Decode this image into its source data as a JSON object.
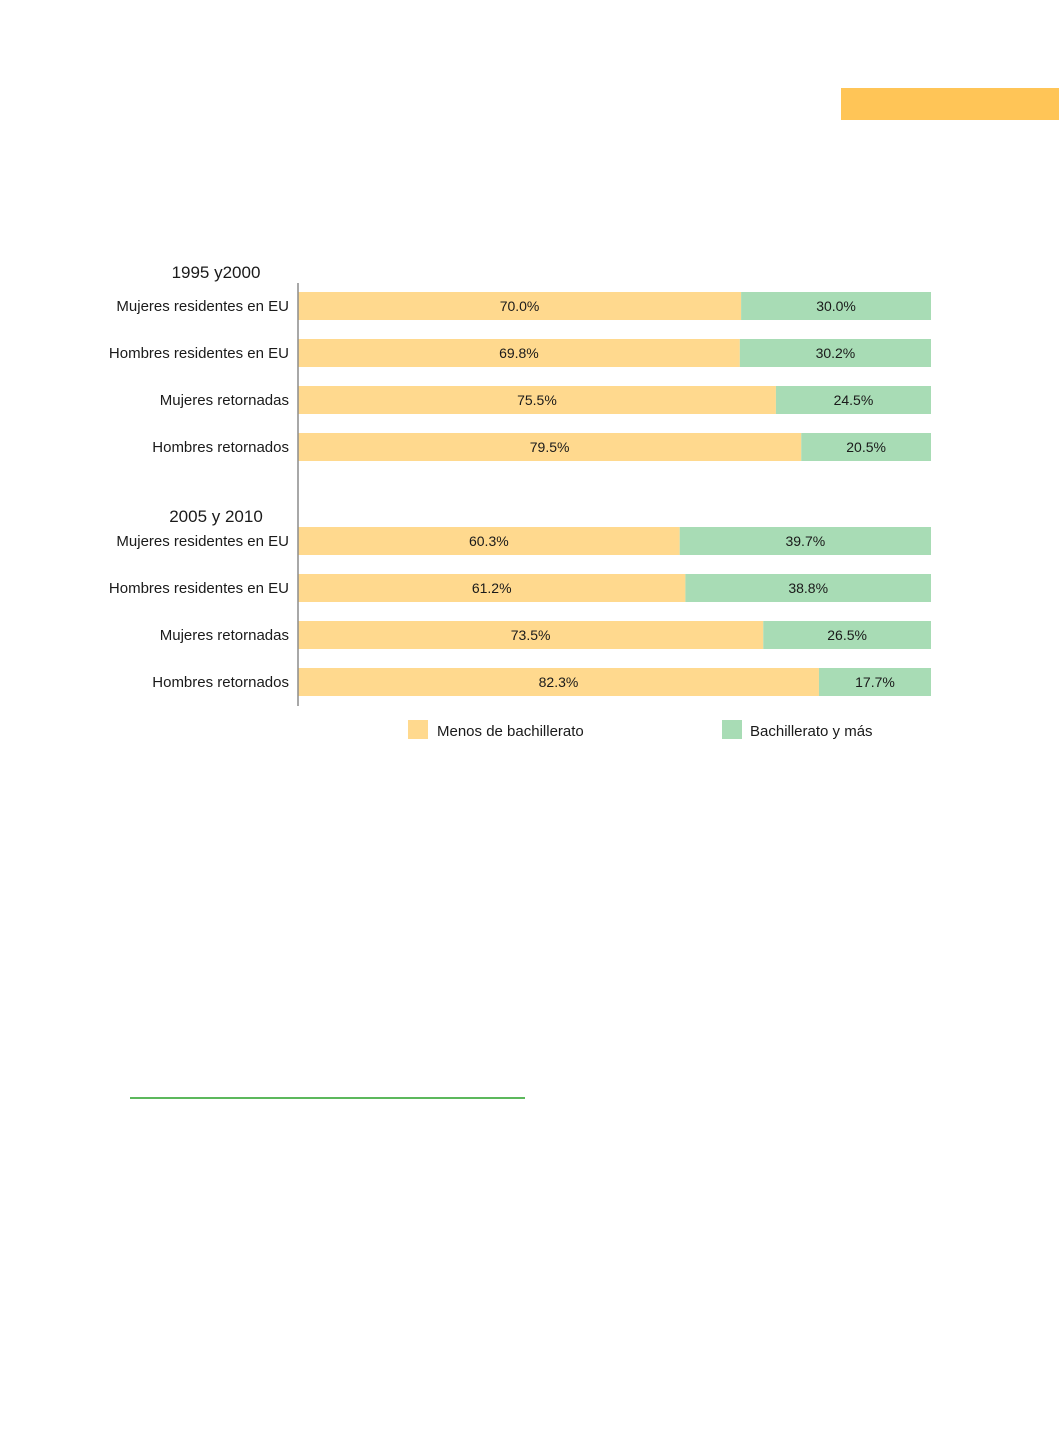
{
  "chart_data": {
    "type": "bar",
    "orientation": "horizontal",
    "stacked": true,
    "unit": "%",
    "xlim": [
      0,
      100
    ],
    "legend_position": "bottom",
    "colors": {
      "less": "#ffd98e",
      "more": "#a8dcb5",
      "accent": "#ffc557",
      "rule": "#5cb85c"
    },
    "legend": [
      {
        "key": "less",
        "label": "Menos de bachillerato"
      },
      {
        "key": "more",
        "label": "Bachillerato y más"
      }
    ],
    "groups": [
      {
        "title": "1995 y2000",
        "rows": [
          {
            "label": "Mujeres residentes en EU",
            "less": 70.0,
            "more": 30.0,
            "less_text": "70.0%",
            "more_text": "30.0%"
          },
          {
            "label": "Hombres residentes en EU",
            "less": 69.8,
            "more": 30.2,
            "less_text": "69.8%",
            "more_text": "30.2%"
          },
          {
            "label": "Mujeres retornadas",
            "less": 75.5,
            "more": 24.5,
            "less_text": "75.5%",
            "more_text": "24.5%"
          },
          {
            "label": "Hombres retornados",
            "less": 79.5,
            "more": 20.5,
            "less_text": "79.5%",
            "more_text": "20.5%"
          }
        ]
      },
      {
        "title": "2005 y 2010",
        "rows": [
          {
            "label": "Mujeres residentes en EU",
            "less": 60.3,
            "more": 39.7,
            "less_text": "60.3%",
            "more_text": "39.7%"
          },
          {
            "label": "Hombres residentes en EU",
            "less": 61.2,
            "more": 38.8,
            "less_text": "61.2%",
            "more_text": "38.8%"
          },
          {
            "label": "Mujeres retornadas",
            "less": 73.5,
            "more": 26.5,
            "less_text": "73.5%",
            "more_text": "26.5%"
          },
          {
            "label": "Hombres retornados",
            "less": 82.3,
            "more": 17.7,
            "less_text": "82.3%",
            "more_text": "17.7%"
          }
        ]
      }
    ]
  }
}
